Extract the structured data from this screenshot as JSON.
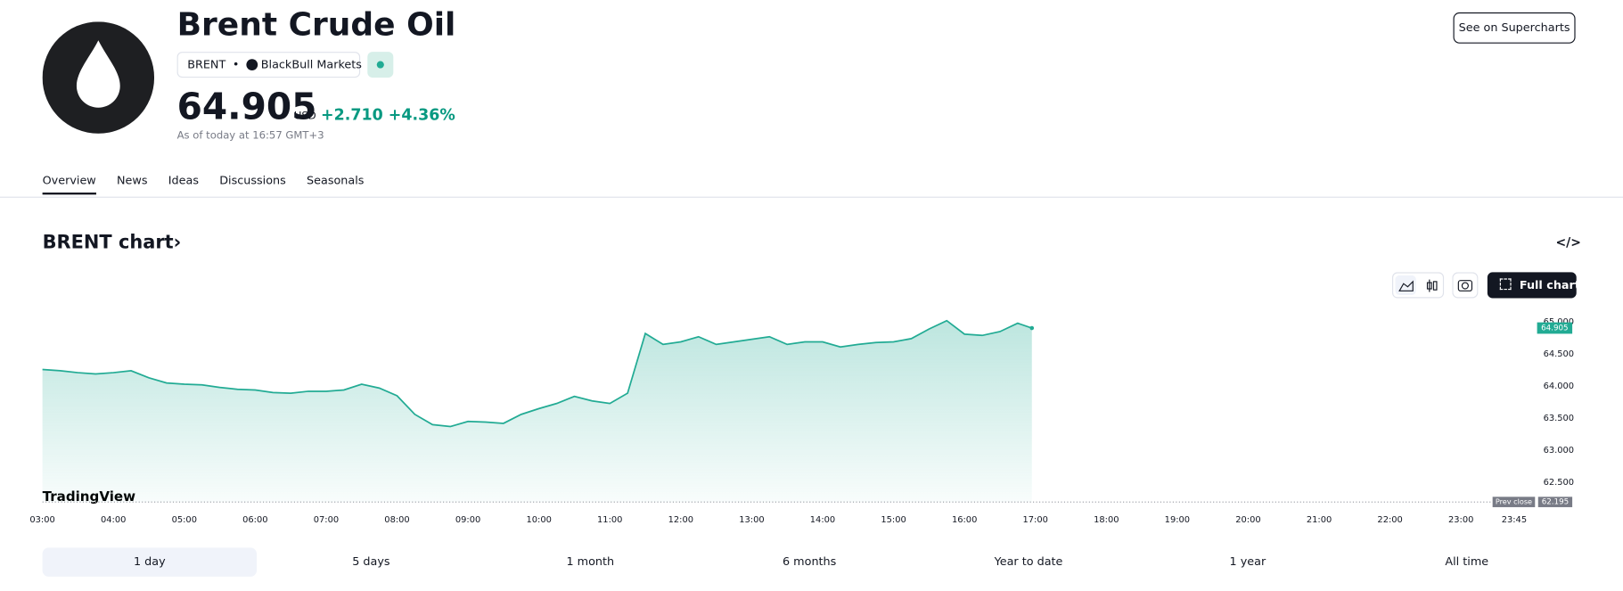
{
  "header": {
    "title": "Brent Crude Oil",
    "symbol": "BRENT",
    "exchange": "BlackBull Markets",
    "price": "64.905",
    "currency": "USD",
    "change": "+2.710",
    "change_percent": "+4.36%",
    "as_of": "As of today at 16:57 GMT+3",
    "button": "See on Supercharts"
  },
  "tabs": [
    "Overview",
    "News",
    "Ideas",
    "Discussions",
    "Seasonals"
  ],
  "section": {
    "title": "BRENT chart",
    "full_chart": "Full chart",
    "watermark": "TradingView"
  },
  "ranges": [
    "1 day",
    "5 days",
    "1 month",
    "6 months",
    "Year to date",
    "1 year",
    "All time"
  ],
  "chart_data": {
    "type": "area",
    "color": "#22ab94",
    "x": [
      "03:00",
      "03:15",
      "03:30",
      "03:45",
      "04:00",
      "04:15",
      "04:30",
      "04:45",
      "05:00",
      "05:15",
      "05:30",
      "05:45",
      "06:00",
      "06:15",
      "06:30",
      "06:45",
      "07:00",
      "07:15",
      "07:30",
      "07:45",
      "08:00",
      "08:15",
      "08:30",
      "08:45",
      "09:00",
      "09:15",
      "09:30",
      "09:45",
      "10:00",
      "10:15",
      "10:30",
      "10:45",
      "11:00",
      "11:15",
      "11:30",
      "11:45",
      "12:00",
      "12:15",
      "12:30",
      "12:45",
      "13:00",
      "13:15",
      "13:30",
      "13:45",
      "14:00",
      "14:15",
      "14:30",
      "14:45",
      "15:00",
      "15:15",
      "15:30",
      "15:45",
      "16:00",
      "16:15",
      "16:30",
      "16:45",
      "16:57"
    ],
    "values": [
      64.26,
      64.24,
      64.21,
      64.19,
      64.21,
      64.24,
      64.13,
      64.05,
      64.03,
      64.02,
      63.98,
      63.95,
      63.94,
      63.9,
      63.89,
      63.92,
      63.92,
      63.94,
      64.03,
      63.97,
      63.85,
      63.56,
      63.4,
      63.37,
      63.45,
      63.44,
      63.42,
      63.56,
      63.65,
      63.73,
      63.84,
      63.77,
      63.73,
      63.89,
      64.82,
      64.65,
      64.69,
      64.77,
      64.65,
      64.69,
      64.73,
      64.77,
      64.65,
      64.69,
      64.69,
      64.61,
      64.65,
      64.68,
      64.69,
      64.74,
      64.89,
      65.02,
      64.81,
      64.79,
      64.85,
      64.98,
      64.905
    ],
    "value_labels": {
      "56": "64.905"
    },
    "xlim": [
      "03:00",
      "24:00"
    ],
    "xticks": [
      "03:00",
      "04:00",
      "05:00",
      "06:00",
      "07:00",
      "08:00",
      "09:00",
      "10:00",
      "11:00",
      "12:00",
      "13:00",
      "14:00",
      "15:00",
      "16:00",
      "17:00",
      "18:00",
      "19:00",
      "20:00",
      "21:00",
      "22:00",
      "23:00",
      "23:45"
    ],
    "ylim": [
      62.1,
      65.15
    ],
    "yticks": [
      {
        "value": 62.5,
        "label": "62.500"
      },
      {
        "value": 63,
        "label": "63.000"
      },
      {
        "value": 63.5,
        "label": "63.500"
      },
      {
        "value": 64,
        "label": "64.000"
      },
      {
        "value": 64.5,
        "label": "64.500"
      },
      {
        "value": 65,
        "label": "65.000"
      }
    ],
    "prev_close": {
      "label": "Prev close",
      "value": 62.195,
      "value_label": "62.195"
    }
  }
}
